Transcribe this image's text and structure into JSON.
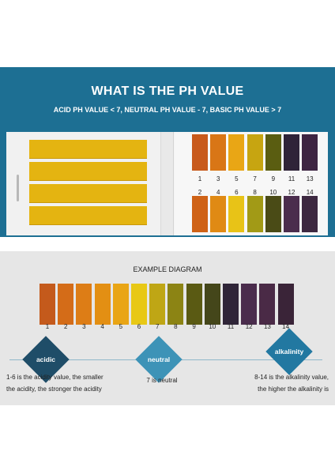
{
  "header": {
    "title": "WHAT IS THE PH VALUE",
    "subtitle": "ACID PH VALUE < 7, NEUTRAL PH VALUE - 7, BASIC PH VALUE > 7"
  },
  "booklet": {
    "strip_color": "#e4b411",
    "row1": {
      "numbers": [
        "1",
        "3",
        "5",
        "7",
        "9",
        "11",
        "13"
      ],
      "colors": [
        "#c85a1c",
        "#d97616",
        "#e9a615",
        "#c7a511",
        "#5a5d11",
        "#2f2338",
        "#3e2542"
      ]
    },
    "row2": {
      "numbers": [
        "2",
        "4",
        "6",
        "8",
        "10",
        "12",
        "14"
      ],
      "colors": [
        "#cf6216",
        "#e08a14",
        "#e8c317",
        "#a29a16",
        "#4a4b16",
        "#4b2d4d",
        "#3d2840"
      ]
    }
  },
  "diagram": {
    "title": "EXAMPLE DIAGRAM",
    "numbers": [
      "1",
      "2",
      "3",
      "4",
      "5",
      "6",
      "7",
      "8",
      "9",
      "10",
      "11",
      "12",
      "13",
      "14"
    ],
    "colors": [
      "#c45a1c",
      "#d46c18",
      "#dd7d16",
      "#e38f13",
      "#e9a515",
      "#e8c815",
      "#bfa615",
      "#8c8414",
      "#5a5a13",
      "#44461a",
      "#2f2538",
      "#4a2c4c",
      "#4a2a46",
      "#3a2438"
    ]
  },
  "scale": {
    "acidic": {
      "label": "acidic",
      "color": "#1f4d68",
      "text_1": "1-6 is the acidity value, the smaller",
      "text_2": "the acidity, the stronger the acidity"
    },
    "neutral": {
      "label": "neutral",
      "color": "#3d93b7",
      "text_1": "7 is neutral"
    },
    "alkalinity": {
      "label": "alkalinity",
      "color": "#2278a1",
      "text_1": "8-14 is the alkalinity value,",
      "text_2": "the higher the alkalinity is"
    }
  }
}
